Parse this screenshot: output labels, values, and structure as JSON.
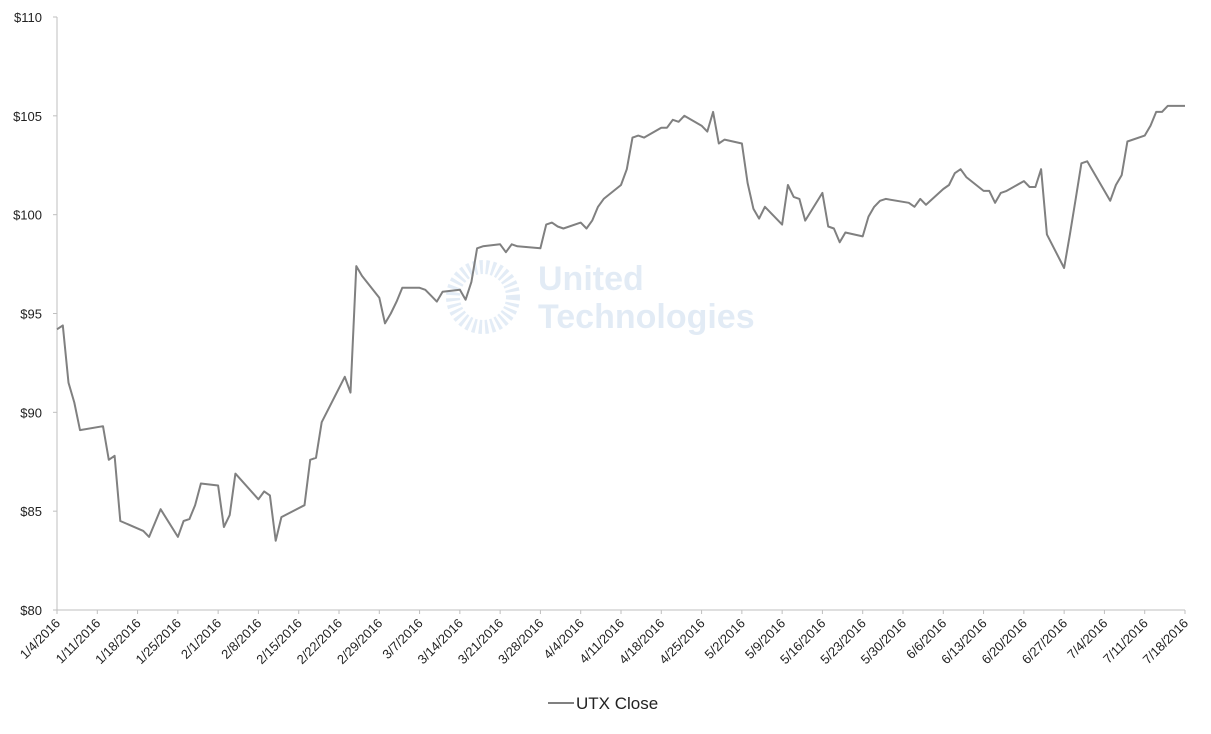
{
  "chart_data": {
    "type": "line",
    "watermark": [
      "United",
      "Technologies"
    ],
    "x": [
      "1/4/2016",
      "1/5/2016",
      "1/6/2016",
      "1/7/2016",
      "1/8/2016",
      "1/12/2016",
      "1/13/2016",
      "1/14/2016",
      "1/15/2016",
      "1/19/2016",
      "1/20/2016",
      "1/22/2016",
      "1/25/2016",
      "1/26/2016",
      "1/27/2016",
      "1/28/2016",
      "1/29/2016",
      "2/1/2016",
      "2/2/2016",
      "2/3/2016",
      "2/4/2016",
      "2/8/2016",
      "2/9/2016",
      "2/10/2016",
      "2/11/2016",
      "2/12/2016",
      "2/16/2016",
      "2/17/2016",
      "2/18/2016",
      "2/19/2016",
      "2/23/2016",
      "2/24/2016",
      "2/25/2016",
      "2/26/2016",
      "2/29/2016",
      "3/1/2016",
      "3/2/2016",
      "3/3/2016",
      "3/4/2016",
      "3/7/2016",
      "3/8/2016",
      "3/9/2016",
      "3/10/2016",
      "3/11/2016",
      "3/14/2016",
      "3/15/2016",
      "3/16/2016",
      "3/17/2016",
      "3/18/2016",
      "3/21/2016",
      "3/22/2016",
      "3/23/2016",
      "3/24/2016",
      "3/28/2016",
      "3/29/2016",
      "3/30/2016",
      "3/31/2016",
      "4/1/2016",
      "4/4/2016",
      "4/5/2016",
      "4/6/2016",
      "4/7/2016",
      "4/8/2016",
      "4/11/2016",
      "4/12/2016",
      "4/13/2016",
      "4/14/2016",
      "4/15/2016",
      "4/18/2016",
      "4/19/2016",
      "4/20/2016",
      "4/21/2016",
      "4/22/2016",
      "4/25/2016",
      "4/26/2016",
      "4/27/2016",
      "4/28/2016",
      "4/29/2016",
      "5/2/2016",
      "5/3/2016",
      "5/4/2016",
      "5/5/2016",
      "5/6/2016",
      "5/9/2016",
      "5/10/2016",
      "5/11/2016",
      "5/12/2016",
      "5/13/2016",
      "5/16/2016",
      "5/17/2016",
      "5/18/2016",
      "5/19/2016",
      "5/20/2016",
      "5/23/2016",
      "5/24/2016",
      "5/25/2016",
      "5/26/2016",
      "5/27/2016",
      "5/31/2016",
      "6/1/2016",
      "6/2/2016",
      "6/3/2016",
      "6/6/2016",
      "6/7/2016",
      "6/8/2016",
      "6/9/2016",
      "6/10/2016",
      "6/13/2016",
      "6/14/2016",
      "6/15/2016",
      "6/16/2016",
      "6/17/2016",
      "6/20/2016",
      "6/21/2016",
      "6/22/2016",
      "6/23/2016",
      "6/24/2016",
      "6/27/2016",
      "6/28/2016",
      "6/29/2016",
      "6/30/2016",
      "7/1/2016",
      "7/5/2016",
      "7/6/2016",
      "7/7/2016",
      "7/8/2016",
      "7/11/2016",
      "7/12/2016",
      "7/13/2016",
      "7/14/2016",
      "7/15/2016",
      "7/18/2016"
    ],
    "series": [
      {
        "name": "UTX Close",
        "color": "#808080",
        "values": [
          94.2,
          94.4,
          91.5,
          90.5,
          89.1,
          89.3,
          87.6,
          87.8,
          84.5,
          84.0,
          83.7,
          85.1,
          83.7,
          84.5,
          84.6,
          85.3,
          86.4,
          86.3,
          84.2,
          84.8,
          86.9,
          85.6,
          86.0,
          85.8,
          83.5,
          84.7,
          85.3,
          87.6,
          87.7,
          89.5,
          91.8,
          91.0,
          97.4,
          96.9,
          95.8,
          94.5,
          95.0,
          95.6,
          96.3,
          96.3,
          96.2,
          95.9,
          95.6,
          96.1,
          96.2,
          95.7,
          96.6,
          98.3,
          98.4,
          98.5,
          98.1,
          98.5,
          98.4,
          98.3,
          99.5,
          99.6,
          99.4,
          99.3,
          99.6,
          99.3,
          99.7,
          100.4,
          100.8,
          101.5,
          102.3,
          103.9,
          104.0,
          103.9,
          104.4,
          104.4,
          104.8,
          104.7,
          105.0,
          104.5,
          104.2,
          105.2,
          103.6,
          103.8,
          103.6,
          101.6,
          100.3,
          99.8,
          100.4,
          99.5,
          101.5,
          100.9,
          100.8,
          99.7,
          101.1,
          99.4,
          99.3,
          98.6,
          99.1,
          98.9,
          99.9,
          100.4,
          100.7,
          100.8,
          100.6,
          100.4,
          100.8,
          100.5,
          101.3,
          101.5,
          102.1,
          102.3,
          101.9,
          101.2,
          101.2,
          100.6,
          101.1,
          101.2,
          101.7,
          101.4,
          101.4,
          102.3,
          99.0,
          97.3,
          99.0,
          100.8,
          102.6,
          102.7,
          100.7,
          101.5,
          102.0,
          103.7,
          104.0,
          104.5,
          105.2,
          105.2,
          105.5,
          105.5
        ]
      }
    ],
    "xlim": [
      "1/4/2016",
      "7/18/2016"
    ],
    "xticks": [
      "1/4/2016",
      "1/11/2016",
      "1/18/2016",
      "1/25/2016",
      "2/1/2016",
      "2/8/2016",
      "2/15/2016",
      "2/22/2016",
      "2/29/2016",
      "3/7/2016",
      "3/14/2016",
      "3/21/2016",
      "3/28/2016",
      "4/4/2016",
      "4/11/2016",
      "4/18/2016",
      "4/25/2016",
      "5/2/2016",
      "5/9/2016",
      "5/16/2016",
      "5/23/2016",
      "5/30/2016",
      "6/6/2016",
      "6/13/2016",
      "6/20/2016",
      "6/27/2016",
      "7/4/2016",
      "7/11/2016",
      "7/18/2016"
    ],
    "ylim": [
      80,
      110
    ],
    "yticks": [
      {
        "value": 80,
        "label": "$80"
      },
      {
        "value": 85,
        "label": "$85"
      },
      {
        "value": 90,
        "label": "$90"
      },
      {
        "value": 95,
        "label": "$95"
      },
      {
        "value": 100,
        "label": "$100"
      },
      {
        "value": 105,
        "label": "$105"
      },
      {
        "value": 110,
        "label": "$110"
      }
    ],
    "legend": "bottom"
  }
}
